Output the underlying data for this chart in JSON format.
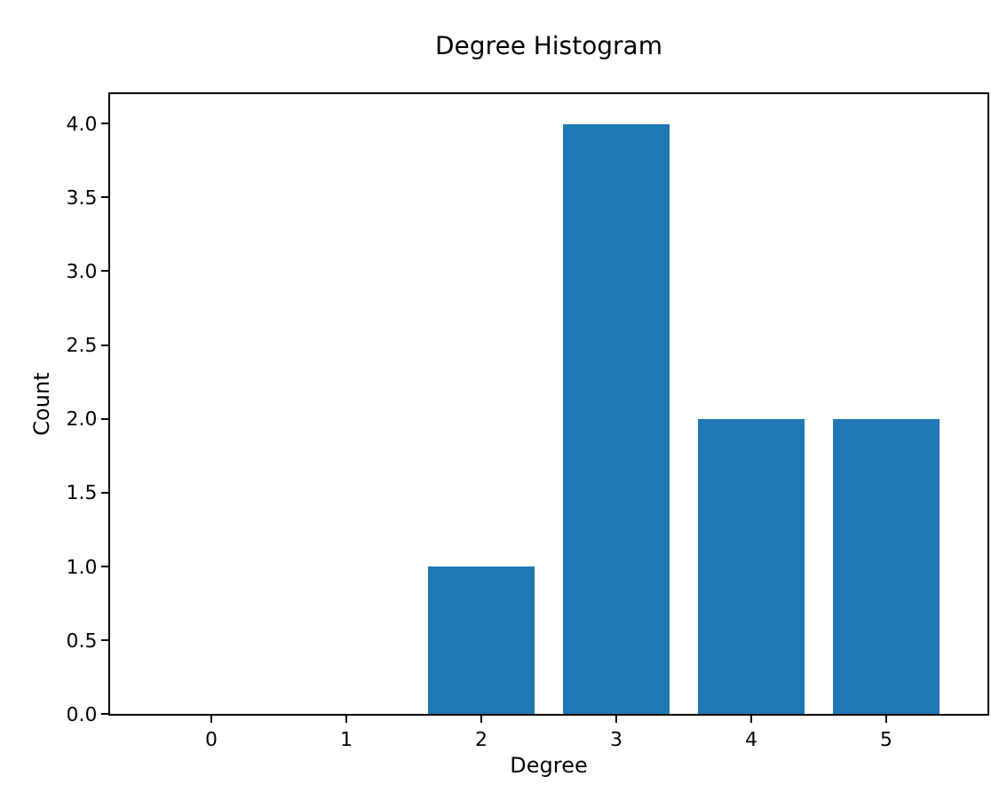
{
  "chart_data": {
    "type": "bar",
    "title": "Degree Histogram",
    "ylabel": "Count",
    "x": [
      0,
      1,
      2,
      3,
      4,
      5
    ],
    "values": [
      0,
      0,
      1,
      4,
      2,
      2
    ],
    "color": "#1f77b4",
    "xlim": [
      -0.75,
      5.75
    ],
    "xticks": [
      0,
      1,
      2,
      3,
      4,
      5
    ],
    "ylim": [
      0,
      4.2
    ],
    "yticks": [
      {
        "value": 0,
        "label": "0.0"
      },
      {
        "value": 0.5,
        "label": "0.5"
      },
      {
        "value": 1,
        "label": "1.0"
      },
      {
        "value": 1.5,
        "label": "1.5"
      },
      {
        "value": 2,
        "label": "2.0"
      },
      {
        "value": 2.5,
        "label": "2.5"
      },
      {
        "value": 3,
        "label": "3.0"
      },
      {
        "value": 3.5,
        "label": "3.5"
      },
      {
        "value": 4,
        "label": "4.0"
      }
    ],
    "xlabel": "Degree"
  }
}
